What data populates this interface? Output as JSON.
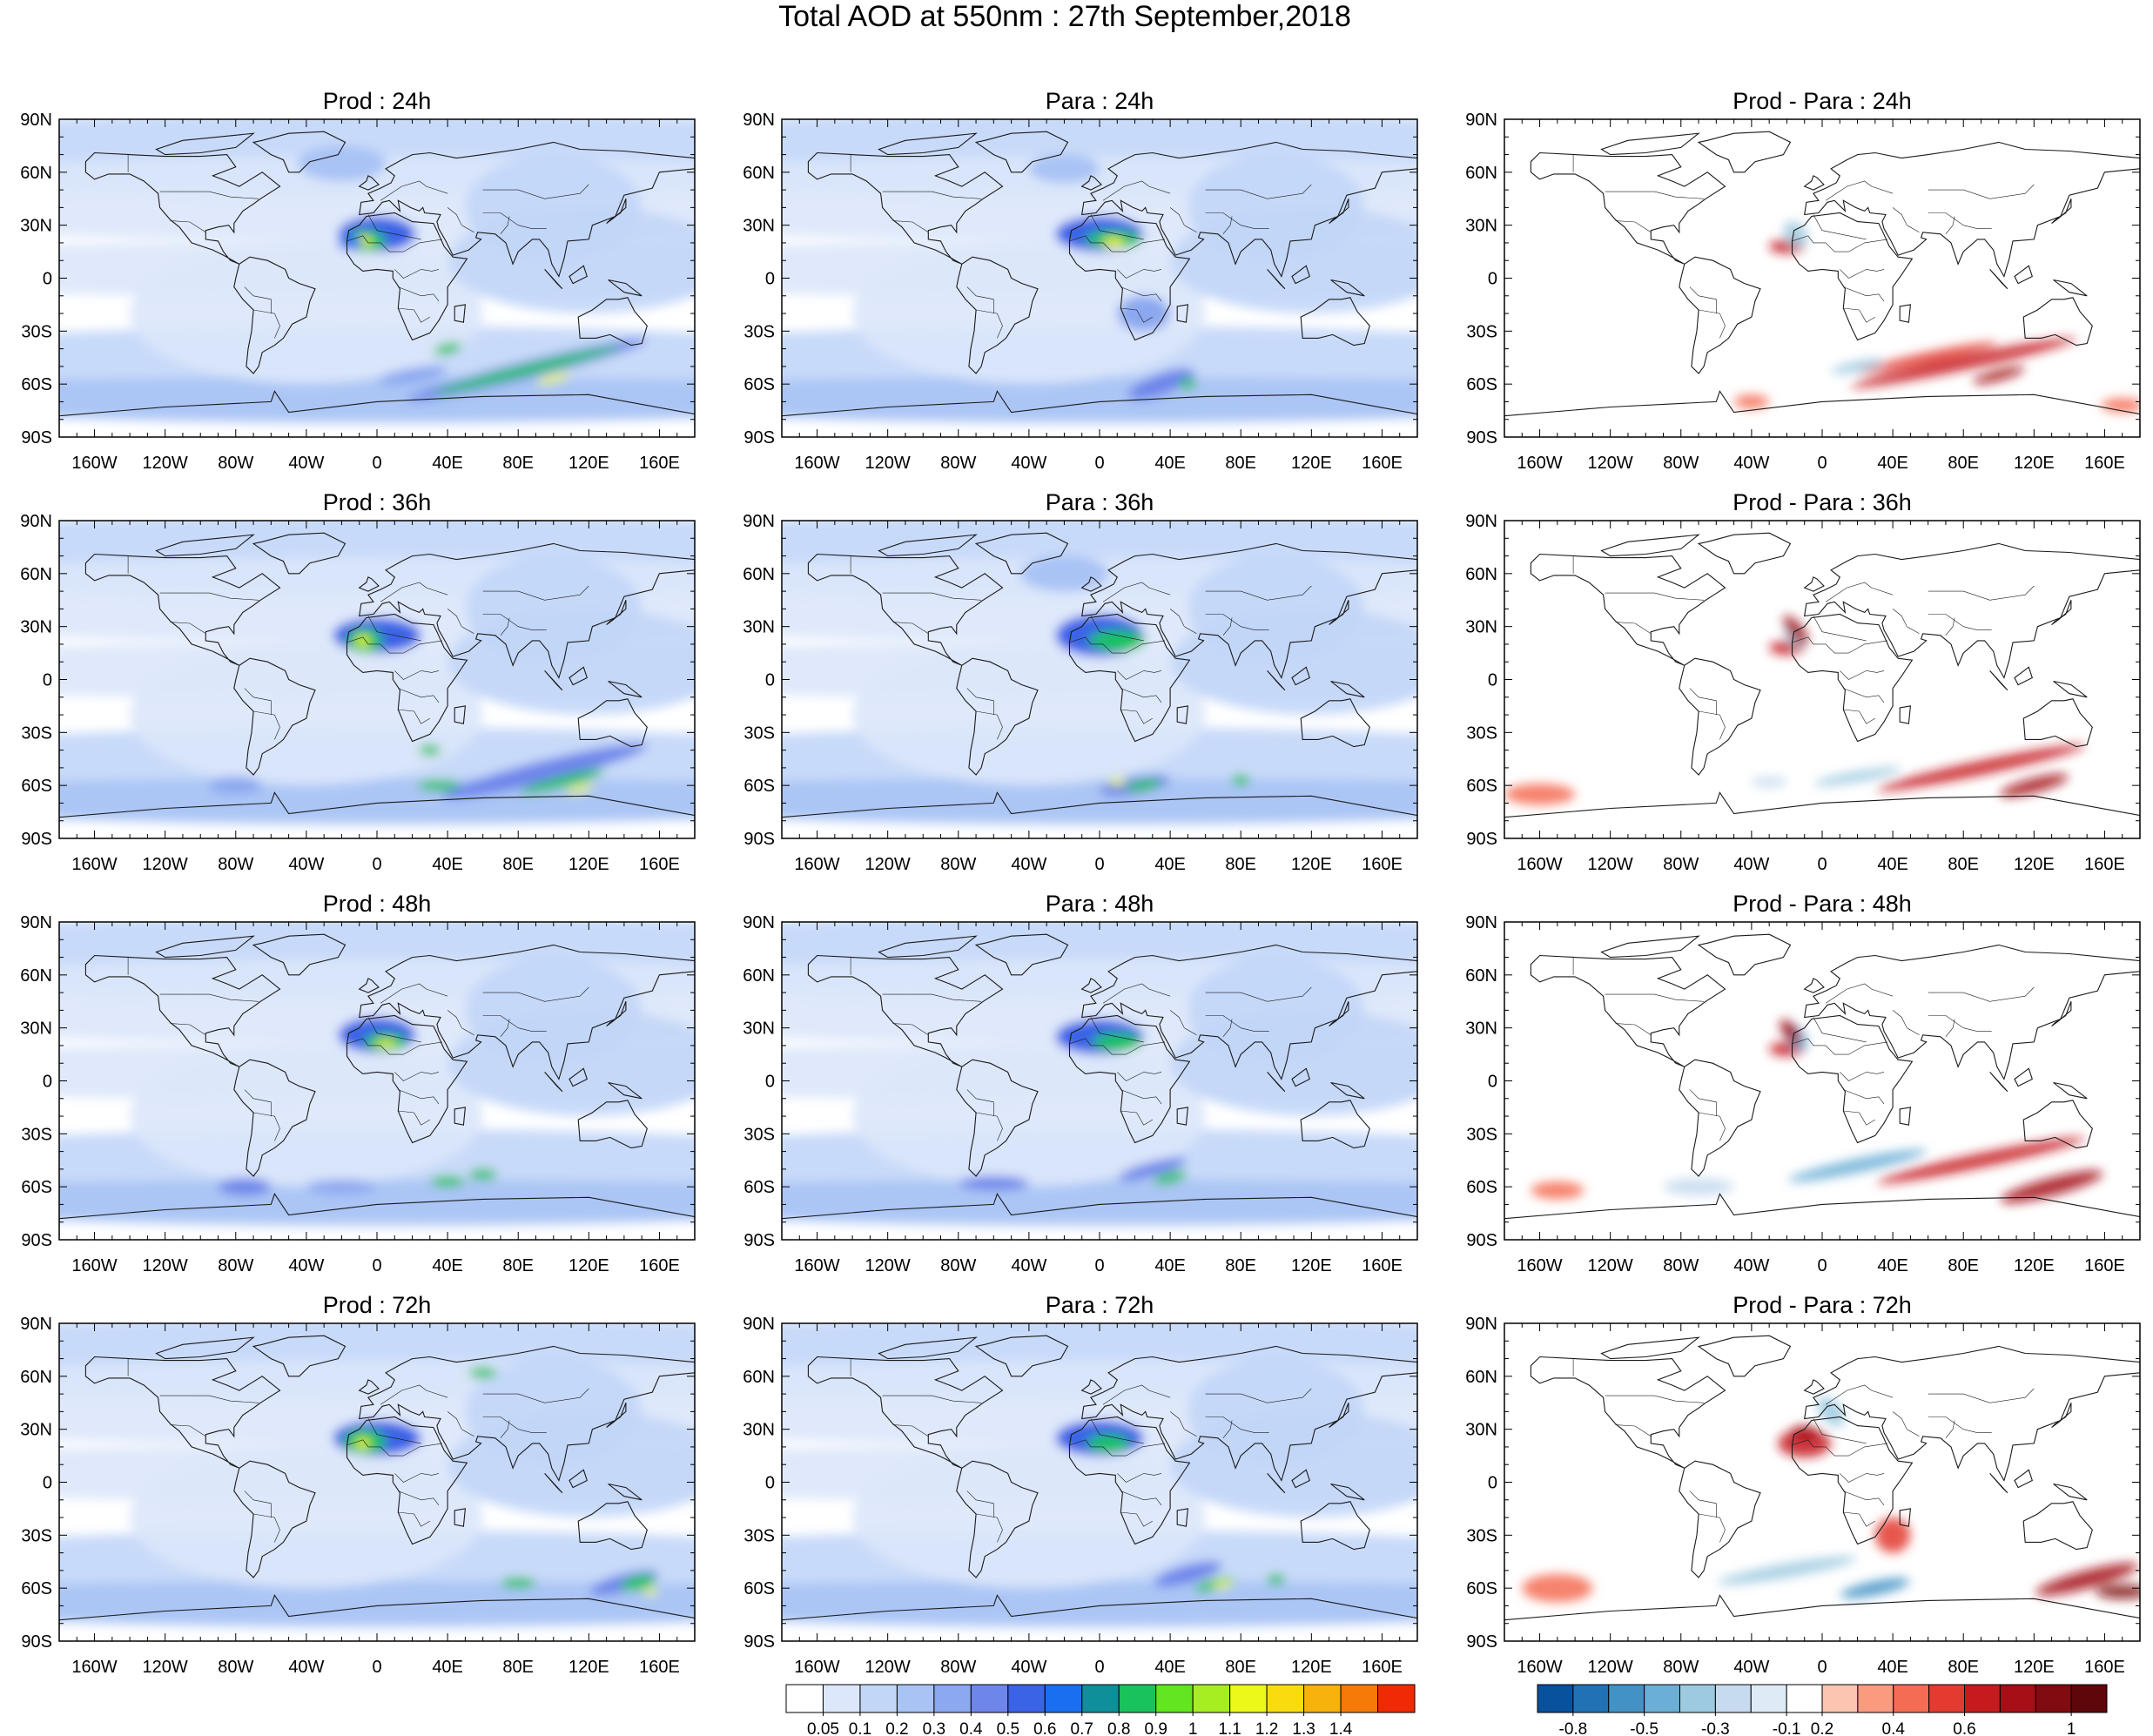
{
  "title": "Total AOD at 550nm : 27th September,2018",
  "rows": [
    "24h",
    "36h",
    "48h",
    "72h"
  ],
  "columns": [
    {
      "name": "Prod",
      "scale": "aod"
    },
    {
      "name": "Para",
      "scale": "aod"
    },
    {
      "name": "Prod - Para",
      "scale": "diff"
    }
  ],
  "panel_titles": [
    [
      "Prod : 24h",
      "Para : 24h",
      "Prod - Para : 24h"
    ],
    [
      "Prod : 36h",
      "Para : 36h",
      "Prod - Para : 36h"
    ],
    [
      "Prod : 48h",
      "Para : 48h",
      "Prod - Para : 48h"
    ],
    [
      "Prod : 72h",
      "Para : 72h",
      "Prod - Para : 72h"
    ]
  ],
  "lat_labels": [
    "90N",
    "60N",
    "30N",
    "0",
    "30S",
    "60S",
    "90S"
  ],
  "lon_labels": [
    "160W",
    "120W",
    "80W",
    "40W",
    "0",
    "40E",
    "80E",
    "120E",
    "160E"
  ],
  "aod_colorbar": {
    "labels": [
      "0.05",
      "0.1",
      "0.2",
      "0.3",
      "0.4",
      "0.5",
      "0.6",
      "0.7",
      "0.8",
      "0.9",
      "1",
      "1.1",
      "1.2",
      "1.3",
      "1.4"
    ],
    "colors": [
      "#ffffff",
      "#dce7fb",
      "#c2d6f8",
      "#a9c3f5",
      "#8ba8f0",
      "#6e86ea",
      "#3a63e6",
      "#1a6ef0",
      "#0f8f9a",
      "#19c25b",
      "#61e61f",
      "#a6ee22",
      "#ecf71a",
      "#f8dc10",
      "#f7b20b",
      "#f57a07",
      "#f02a04"
    ]
  },
  "diff_colorbar": {
    "labels": [
      "-0.8",
      "-0.5",
      "-0.3",
      "-0.1",
      "0.2",
      "0.4",
      "0.6",
      "1"
    ],
    "tick_values": [
      -0.8,
      -0.5,
      -0.3,
      -0.1,
      0.2,
      0.4,
      0.6,
      1
    ],
    "colors": [
      "#08519c",
      "#2171b5",
      "#4292c6",
      "#6baed6",
      "#9ecae1",
      "#c6dbef",
      "#deebf7",
      "#ffffff",
      "#fcc5b2",
      "#fb9a7f",
      "#f46c54",
      "#e33b2f",
      "#c61b1e",
      "#a50f15",
      "#800b10",
      "#5e060a"
    ]
  },
  "colors": {
    "coast": "#1a1a1a",
    "frame": "#000000",
    "aod_low": "#c7d6f7",
    "dust_core": "#fbe91b"
  }
}
